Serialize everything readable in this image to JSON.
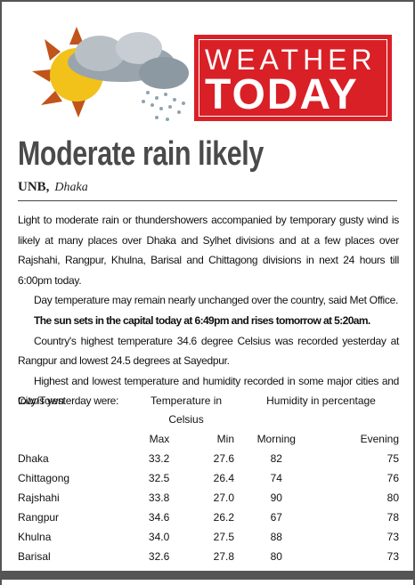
{
  "banner": {
    "line1": "WEATHER",
    "line2": "TODAY"
  },
  "headline": "Moderate rain likely",
  "byline": {
    "agency": "UNB,",
    "place": "Dhaka"
  },
  "paragraphs": [
    "Light to moderate rain or thundershowers accompanied by temporary gusty wind is likely at many places over Dhaka and Sylhet divisions and at a few places over Rajshahi, Rangpur, Khulna, Barisal and Chittagong divisions in next 24 hours till 6:00pm today.",
    "Day temperature may remain nearly unchanged over the country, said Met Office.",
    "The sun sets in the capital today at 6:49pm and rises tomorrow at 5:20am.",
    "Country's highest temperature 34.6 degree Celsius was recorded yesterday at Rangpur and lowest 24.5 degrees at Sayedpur.",
    "Highest and lowest temperature and humidity recorded in some major cities and towns yesterday were:"
  ],
  "table": {
    "header": {
      "city": "City/Town",
      "temperature": "Temperature in Celsius",
      "humidity": "Humidity in percentage"
    },
    "subheader": [
      "Max",
      "Min",
      "Morning",
      "Evening"
    ],
    "rows": [
      [
        "Dhaka",
        "33.2",
        "27.6",
        "82",
        "75"
      ],
      [
        "Chittagong",
        "32.5",
        "26.4",
        "74",
        "76"
      ],
      [
        "Rajshahi",
        "33.8",
        "27.0",
        "90",
        "80"
      ],
      [
        "Rangpur",
        "34.6",
        "26.2",
        "67",
        "78"
      ],
      [
        "Khulna",
        "34.0",
        "27.5",
        "88",
        "73"
      ],
      [
        "Barisal",
        "32.6",
        "27.8",
        "80",
        "73"
      ]
    ]
  }
}
